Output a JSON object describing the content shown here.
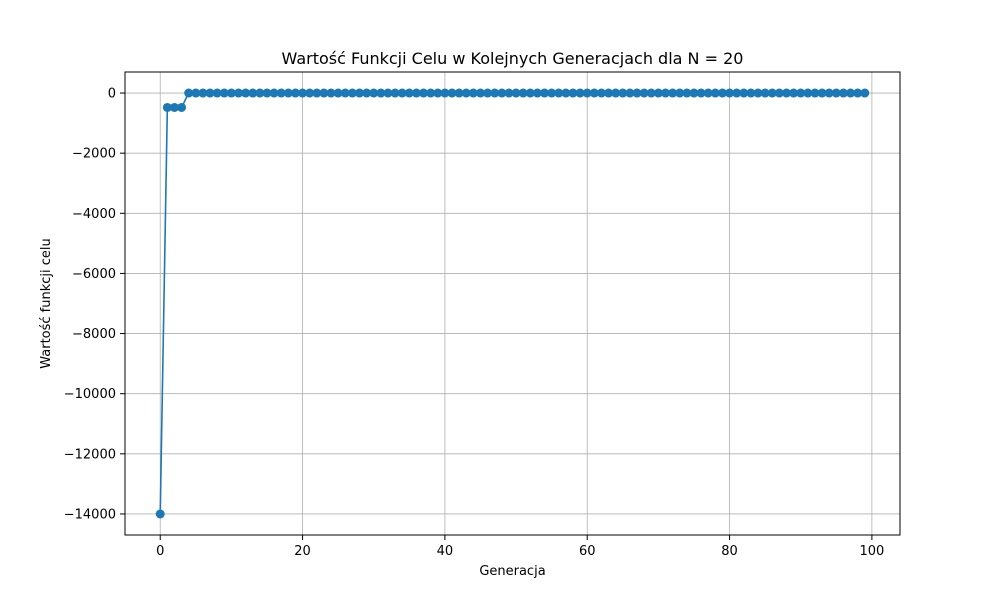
{
  "chart_data": {
    "type": "line",
    "title": "Wartość Funkcji Celu w Kolejnych Generacjach dla N = 20",
    "xlabel": "Generacja",
    "ylabel": "Wartość funkcji celu",
    "xlim": [
      -4.95,
      103.95
    ],
    "ylim": [
      -14700,
      700
    ],
    "x_ticks": [
      0,
      20,
      40,
      60,
      80,
      100
    ],
    "y_ticks": [
      0,
      -2000,
      -4000,
      -6000,
      -8000,
      -10000,
      -12000,
      -14000
    ],
    "x_tick_labels": [
      "0",
      "20",
      "40",
      "60",
      "80",
      "100"
    ],
    "y_tick_labels": [
      "0",
      "−2000",
      "−4000",
      "−6000",
      "−8000",
      "−10000",
      "−12000",
      "−14000"
    ],
    "grid": true,
    "series_color": "#1f77b4",
    "marker": "circle",
    "x": [
      0,
      1,
      2,
      3,
      4,
      5,
      6,
      7,
      8,
      9,
      10,
      11,
      12,
      13,
      14,
      15,
      16,
      17,
      18,
      19,
      20,
      21,
      22,
      23,
      24,
      25,
      26,
      27,
      28,
      29,
      30,
      31,
      32,
      33,
      34,
      35,
      36,
      37,
      38,
      39,
      40,
      41,
      42,
      43,
      44,
      45,
      46,
      47,
      48,
      49,
      50,
      51,
      52,
      53,
      54,
      55,
      56,
      57,
      58,
      59,
      60,
      61,
      62,
      63,
      64,
      65,
      66,
      67,
      68,
      69,
      70,
      71,
      72,
      73,
      74,
      75,
      76,
      77,
      78,
      79,
      80,
      81,
      82,
      83,
      84,
      85,
      86,
      87,
      88,
      89,
      90,
      91,
      92,
      93,
      94,
      95,
      96,
      97,
      98,
      99
    ],
    "series": [
      {
        "values": [
          -14000,
          -480,
          -480,
          -480,
          0,
          0,
          0,
          0,
          0,
          0,
          0,
          0,
          0,
          0,
          0,
          0,
          0,
          0,
          0,
          0,
          0,
          0,
          0,
          0,
          0,
          0,
          0,
          0,
          0,
          0,
          0,
          0,
          0,
          0,
          0,
          0,
          0,
          0,
          0,
          0,
          0,
          0,
          0,
          0,
          0,
          0,
          0,
          0,
          0,
          0,
          0,
          0,
          0,
          0,
          0,
          0,
          0,
          0,
          0,
          0,
          0,
          0,
          0,
          0,
          0,
          0,
          0,
          0,
          0,
          0,
          0,
          0,
          0,
          0,
          0,
          0,
          0,
          0,
          0,
          0,
          0,
          0,
          0,
          0,
          0,
          0,
          0,
          0,
          0,
          0,
          0,
          0,
          0,
          0,
          0,
          0,
          0,
          0,
          0,
          0
        ]
      }
    ]
  }
}
